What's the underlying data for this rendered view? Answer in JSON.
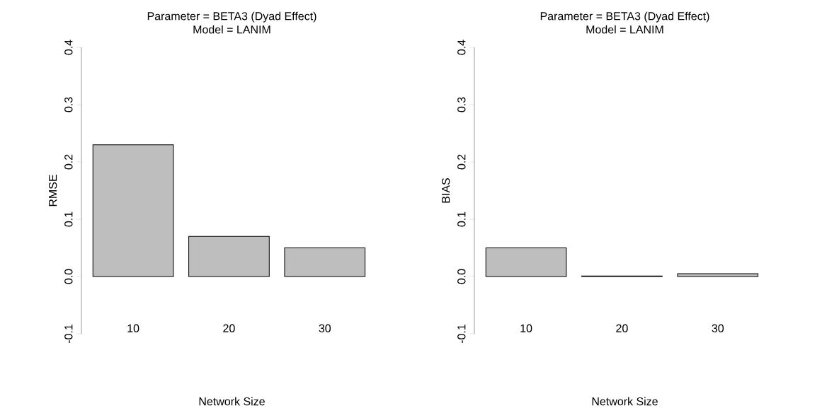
{
  "chart_data": [
    {
      "type": "bar",
      "title": "Parameter = BETA3 (Dyad Effect)",
      "subtitle": "Model = LANIM",
      "xlabel": "Network Size",
      "ylabel": "RMSE",
      "categories": [
        "10",
        "20",
        "30"
      ],
      "values": [
        0.23,
        0.07,
        0.05
      ],
      "color": "#bebebe",
      "ylim": [
        -0.1,
        0.4
      ],
      "yticks": [
        -0.1,
        {
          "value": 0,
          "label": "0.0"
        },
        0.1,
        0.2,
        0.3,
        0.4
      ]
    },
    {
      "type": "bar",
      "title": "Parameter = BETA3 (Dyad Effect)",
      "subtitle": "Model = LANIM",
      "xlabel": "Network Size",
      "ylabel": "BIAS",
      "categories": [
        "10",
        "20",
        "30"
      ],
      "values": [
        0.05,
        0.001,
        0.005
      ],
      "color": "#bebebe",
      "ylim": [
        -0.1,
        0.4
      ],
      "yticks": [
        -0.1,
        {
          "value": 0,
          "label": "0.0"
        },
        0.1,
        0.2,
        0.3,
        0.4
      ]
    }
  ]
}
